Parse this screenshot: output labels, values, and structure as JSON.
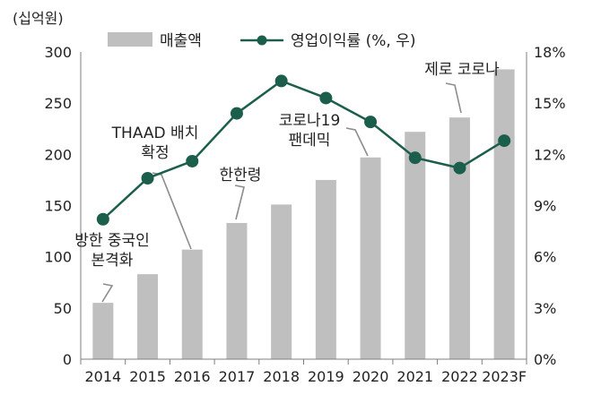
{
  "chart_data": {
    "type": "bar",
    "categories": [
      "2014",
      "2015",
      "2016",
      "2017",
      "2018",
      "2019",
      "2020",
      "2021",
      "2022",
      "2023F"
    ],
    "y_left_unit": "(십억원)",
    "ylim_left": [
      0,
      300
    ],
    "yticks_left": [
      "0",
      "50",
      "100",
      "150",
      "200",
      "250",
      "300"
    ],
    "ylim_right": [
      0,
      18
    ],
    "yticks_right": [
      "0%",
      "3%",
      "6%",
      "9%",
      "12%",
      "15%",
      "18%"
    ],
    "series": [
      {
        "name": "매출액",
        "type": "bar",
        "axis": "left",
        "color": "#bfbfbf",
        "values": [
          55,
          83,
          107,
          133,
          151,
          175,
          197,
          222,
          236,
          283
        ]
      },
      {
        "name": "영업이익률 (%, 우)",
        "type": "line",
        "axis": "right",
        "color": "#1b5e4b",
        "values": [
          8.2,
          10.6,
          11.6,
          14.4,
          16.3,
          15.3,
          13.9,
          11.8,
          11.2,
          12.8
        ]
      }
    ],
    "legend_position": "top",
    "grid": false,
    "annotations": [
      {
        "lines": [
          "방한 중국인",
          "본격화"
        ],
        "target_index": 0
      },
      {
        "lines": [
          "THAAD 배치",
          "확정"
        ],
        "target_index": 2
      },
      {
        "lines": [
          "한한령"
        ],
        "target_index": 3
      },
      {
        "lines": [
          "코로나19",
          "팬데믹"
        ],
        "target_index": 6
      },
      {
        "lines": [
          "제로 코로나"
        ],
        "target_index": 8
      }
    ]
  }
}
